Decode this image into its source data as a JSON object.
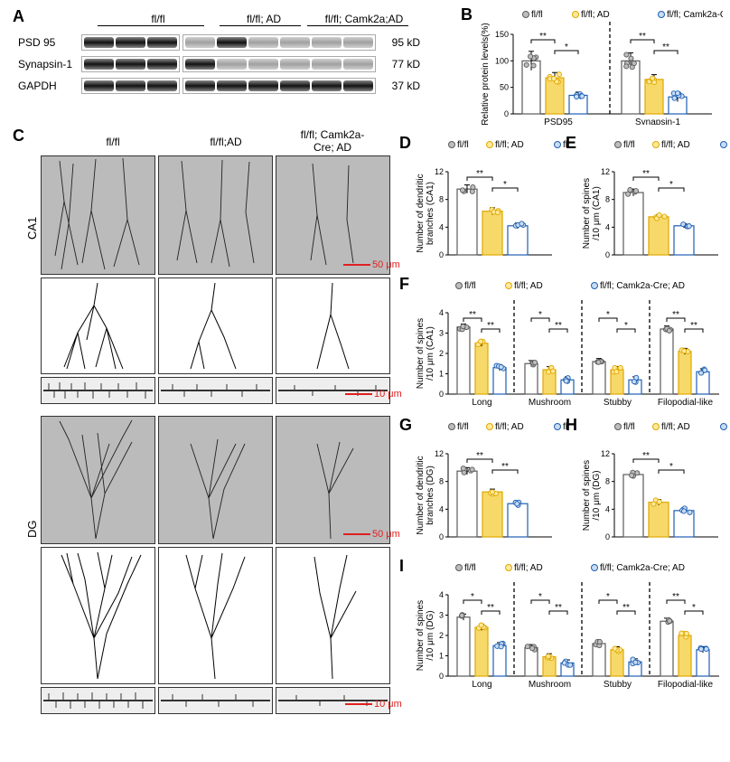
{
  "labels": {
    "A": "A",
    "B": "B",
    "C": "C",
    "D": "D",
    "E": "E",
    "F": "F",
    "G": "G",
    "H": "H",
    "I": "I"
  },
  "groups": {
    "g1": "fl/fl",
    "g2": "fl/fl; AD",
    "g3": "fl/fl; Camk2a-Cre; AD",
    "g2short": "fl/fl;AD",
    "g3col": "fl/fl; Camk2a-\nCre; AD"
  },
  "colors": {
    "g1_fill": "#ffffff",
    "g1_stroke": "#5b5b5b",
    "g2_fill": "#f7d96a",
    "g2_stroke": "#e0a800",
    "g3_fill": "#ffffff",
    "g3_stroke": "#1e5fb3",
    "scale": "#e02020",
    "pt_g1": "#bdbdbd",
    "pt_g2": "#ffe99a",
    "pt_g3": "#c8dcf2"
  },
  "wb": {
    "rows": [
      {
        "name": "PSD 95",
        "kd": "95 kD"
      },
      {
        "name": "Synapsin-1",
        "kd": "77 kD"
      },
      {
        "name": "GAPDH",
        "kd": "37 kD"
      }
    ],
    "head": {
      "g1": "fl/fl",
      "g2": "fl/fl; AD",
      "g3": "fl/fl; Camk2a;AD"
    }
  },
  "panelB": {
    "ylabel": "Relative protein levels(%)",
    "ylim": [
      0,
      150
    ],
    "ytick": 50,
    "cats": [
      "PSD95",
      "Synapsin-1"
    ],
    "vals": {
      "PSD95": [
        100,
        68,
        35
      ],
      "Synapsin-1": [
        100,
        65,
        32
      ]
    },
    "err": {
      "PSD95": [
        18,
        10,
        6
      ],
      "Synapsin-1": [
        15,
        9,
        9
      ]
    },
    "sig": {
      "PSD95": [
        [
          "**"
        ],
        [
          "*"
        ]
      ],
      "Synapsin-1": [
        [
          "**"
        ],
        [
          "**"
        ]
      ]
    },
    "n": 6
  },
  "panelD": {
    "ylabel": "Number of dendritic\nbranches (CA1)",
    "ylim": [
      0,
      12
    ],
    "ytick": 4,
    "vals": [
      9.5,
      6.3,
      4.2
    ],
    "err": [
      0.6,
      0.5,
      0.4
    ],
    "sig": [
      "**",
      "*"
    ],
    "n": 4
  },
  "panelE": {
    "ylabel": "Number of spines\n/10 μm (CA1)",
    "ylim": [
      0,
      12
    ],
    "ytick": 4,
    "vals": [
      9.0,
      5.5,
      4.2
    ],
    "err": [
      0.5,
      0.3,
      0.3
    ],
    "sig": [
      "**",
      "*"
    ],
    "n": 4
  },
  "panelF": {
    "ylabel": "Number of spines\n/10 μm (CA1)",
    "ylim": [
      0,
      4
    ],
    "ytick": 1,
    "cats": [
      "Long",
      "Mushroom",
      "Stubby",
      "Filopodial-like"
    ],
    "vals": {
      "Long": [
        3.3,
        2.5,
        1.3
      ],
      "Mushroom": [
        1.5,
        1.2,
        0.7
      ],
      "Stubby": [
        1.6,
        1.2,
        0.7
      ],
      "Filopodial-like": [
        3.2,
        2.1,
        1.1
      ]
    },
    "err": 0.15,
    "sig": {
      "Long": [
        "**",
        "**"
      ],
      "Mushroom": [
        "*",
        "**"
      ],
      "Stubby": [
        "*",
        "*"
      ],
      "Filopodial-like": [
        "**",
        "**"
      ]
    },
    "n": 4
  },
  "panelG": {
    "ylabel": "Number of dendritic\nbranches (DG)",
    "ylim": [
      0,
      12
    ],
    "ytick": 4,
    "vals": [
      9.5,
      6.5,
      4.8
    ],
    "err": [
      0.5,
      0.4,
      0.3
    ],
    "sig": [
      "**",
      "**"
    ],
    "n": 4
  },
  "panelH": {
    "ylabel": "Number of spines\n/10 μm (DG)",
    "ylim": [
      0,
      12
    ],
    "ytick": 4,
    "vals": [
      9.0,
      5.0,
      3.8
    ],
    "err": [
      0.4,
      0.4,
      0.4
    ],
    "sig": [
      "**",
      "*"
    ],
    "n": 4
  },
  "panelI": {
    "ylabel": "Number of spines\n/10 μm (DG)",
    "ylim": [
      0,
      4
    ],
    "ytick": 1,
    "cats": [
      "Long",
      "Mushroom",
      "Stubby",
      "Filopodial-like"
    ],
    "vals": {
      "Long": [
        2.9,
        2.4,
        1.5
      ],
      "Mushroom": [
        1.4,
        0.95,
        0.65
      ],
      "Stubby": [
        1.6,
        1.3,
        0.7
      ],
      "Filopodial-like": [
        2.7,
        2.0,
        1.3
      ]
    },
    "err": 0.15,
    "sig": {
      "Long": [
        "*",
        "**"
      ],
      "Mushroom": [
        "*",
        "**"
      ],
      "Stubby": [
        "*",
        "**"
      ],
      "Filopodial-like": [
        "**",
        "*"
      ]
    },
    "n": 4
  },
  "micro": {
    "regions": [
      "CA1",
      "DG"
    ],
    "scale50": "50 μm",
    "scale10": "10 μm"
  }
}
